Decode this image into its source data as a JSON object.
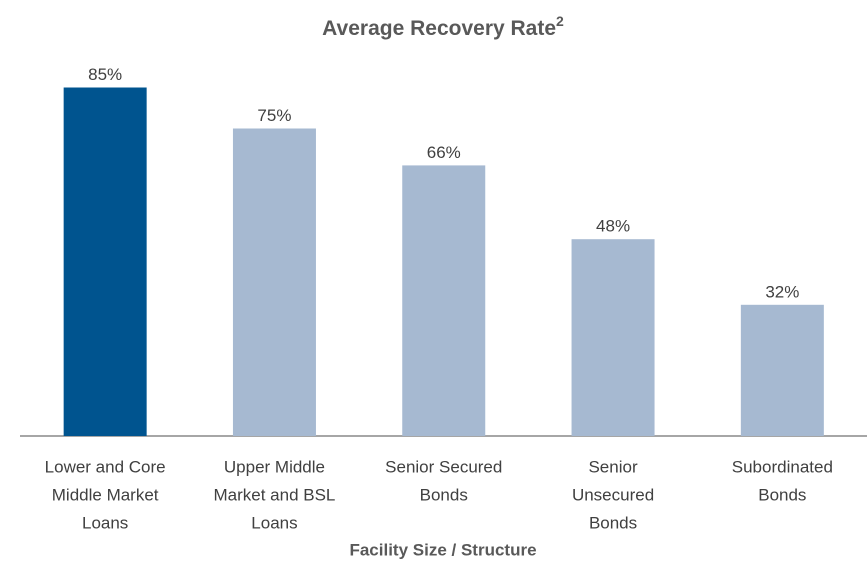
{
  "chart_data": {
    "type": "bar",
    "title": "Average Recovery Rate",
    "title_superscript": "2",
    "x_label": "Facility Size / Structure",
    "categories": [
      [
        "Lower and Core",
        "Middle Market",
        "Loans"
      ],
      [
        "Upper Middle",
        "Market and BSL",
        "Loans"
      ],
      [
        "Senior Secured",
        "Bonds"
      ],
      [
        "Senior",
        "Unsecured",
        "Bonds"
      ],
      [
        "Subordinated",
        "Bonds"
      ]
    ],
    "values": [
      85,
      75,
      66,
      48,
      32
    ],
    "value_labels": [
      "85%",
      "75%",
      "66%",
      "48%",
      "32%"
    ],
    "colors": [
      "#00548f",
      "#a6b9d1",
      "#a6b9d1",
      "#a6b9d1",
      "#a6b9d1"
    ],
    "ylim": [
      0,
      100
    ]
  }
}
